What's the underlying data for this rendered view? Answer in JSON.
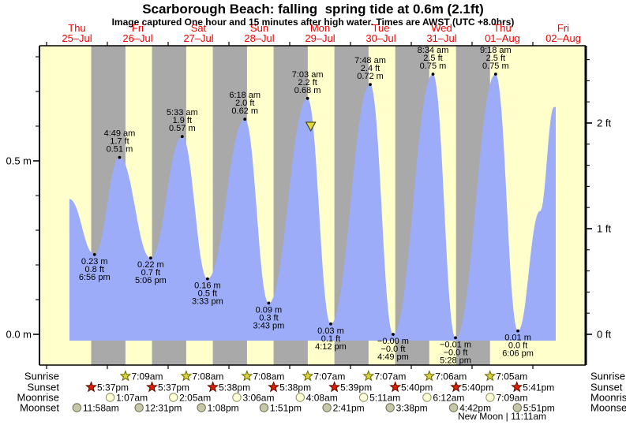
{
  "title": "Scarborough Beach: falling  spring tide at 0.6m (2.1ft)",
  "subtitle": "Image captured One hour and 15 minutes after high water. Times are AWST (UTC +8.0hrs)",
  "colors": {
    "day_band": "#ffffcc",
    "night_band": "#a9a9a9",
    "tide_fill": "#9dacf8",
    "date_text": "#f20000",
    "axis_line": "#000000",
    "annotation_text": "#000000",
    "sunrise_star_fill": "#d8d43a",
    "sunrise_star_stroke": "#6b6800",
    "sunset_star_fill": "#dd2005",
    "sunset_star_stroke": "#5a0d00",
    "moonrise_circle_fill": "#ffffd8",
    "moonrise_circle_stroke": "#8a8a60",
    "moonset_circle_fill": "#c6c6aa",
    "moonset_circle_stroke": "#6b6b50",
    "marker_fill": "#ddd83e",
    "marker_stroke": "#333300"
  },
  "x_axis": {
    "days": [
      {
        "weekday": "Thu",
        "date": "25–Jul"
      },
      {
        "weekday": "Fri",
        "date": "26–Jul"
      },
      {
        "weekday": "Sat",
        "date": "27–Jul"
      },
      {
        "weekday": "Sun",
        "date": "28–Jul"
      },
      {
        "weekday": "Mon",
        "date": "29–Jul"
      },
      {
        "weekday": "Tue",
        "date": "30–Jul"
      },
      {
        "weekday": "Wed",
        "date": "31–Jul"
      },
      {
        "weekday": "Thu",
        "date": "01–Aug"
      },
      {
        "weekday": "Fri",
        "date": "02–Aug"
      }
    ]
  },
  "y_axis": {
    "left_labels": [
      {
        "text": "0.5 m",
        "value_m": 0.5
      },
      {
        "text": "0.0 m",
        "value_m": 0.0
      }
    ],
    "right_labels": [
      {
        "text": "2 ft",
        "value_ft": 2
      },
      {
        "text": "1 ft",
        "value_ft": 1
      },
      {
        "text": "0 ft",
        "value_ft": 0
      }
    ]
  },
  "chart_data": {
    "type": "area",
    "series_name": "tide height",
    "units": [
      "m",
      "ft"
    ],
    "ylim_m": [
      -0.05,
      0.83
    ],
    "tide_events": [
      {
        "type": "low",
        "day": 0,
        "time": "6:56 pm",
        "height_m": 0.23,
        "labels": [
          "0.23 m",
          "0.8 ft",
          "6:56 pm"
        ]
      },
      {
        "type": "high",
        "day": 1,
        "time": "4:49 am",
        "height_m": 0.51,
        "labels": [
          "4:49 am",
          "1.7 ft",
          "0.51 m"
        ]
      },
      {
        "type": "low",
        "day": 1,
        "time": "5:06 pm",
        "height_m": 0.22,
        "labels": [
          "0.22 m",
          "0.7 ft",
          "5:06 pm"
        ]
      },
      {
        "type": "high",
        "day": 2,
        "time": "5:33 am",
        "height_m": 0.57,
        "labels": [
          "5:33 am",
          "1.9 ft",
          "0.57 m"
        ]
      },
      {
        "type": "low",
        "day": 2,
        "time": "3:33 pm",
        "height_m": 0.16,
        "labels": [
          "0.16 m",
          "0.5 ft",
          "3:33 pm"
        ]
      },
      {
        "type": "high",
        "day": 3,
        "time": "6:18 am",
        "height_m": 0.62,
        "labels": [
          "6:18 am",
          "2.0 ft",
          "0.62 m"
        ]
      },
      {
        "type": "low",
        "day": 3,
        "time": "3:43 pm",
        "height_m": 0.09,
        "labels": [
          "0.09 m",
          "0.3 ft",
          "3:43 pm"
        ]
      },
      {
        "type": "high",
        "day": 4,
        "time": "7:03 am",
        "height_m": 0.68,
        "labels": [
          "7:03 am",
          "2.2 ft",
          "0.68 m"
        ]
      },
      {
        "type": "low",
        "day": 4,
        "time": "4:12 pm",
        "height_m": 0.03,
        "labels": [
          "0.03 m",
          "0.1 ft",
          "4:12 pm"
        ]
      },
      {
        "type": "high",
        "day": 5,
        "time": "7:48 am",
        "height_m": 0.72,
        "labels": [
          "7:48 am",
          "2.4 ft",
          "0.72 m"
        ]
      },
      {
        "type": "low",
        "day": 5,
        "time": "4:49 pm",
        "height_m": 0.0,
        "labels": [
          "−0.00 m",
          "−0.0 ft",
          "4:49 pm"
        ]
      },
      {
        "type": "high",
        "day": 6,
        "time": "8:34 am",
        "height_m": 0.75,
        "labels": [
          "8:34 am",
          "2.5 ft",
          "0.75 m"
        ]
      },
      {
        "type": "low",
        "day": 6,
        "time": "5:28 pm",
        "height_m": -0.01,
        "labels": [
          "−0.01 m",
          "−0.0 ft",
          "5:28 pm"
        ]
      },
      {
        "type": "high",
        "day": 7,
        "time": "9:18 am",
        "height_m": 0.75,
        "labels": [
          "9:18 am",
          "2.5 ft",
          "0.75 m"
        ]
      },
      {
        "type": "low",
        "day": 7,
        "time": "6:06 pm",
        "height_m": 0.01,
        "labels": [
          "0.01 m",
          "0.0 ft",
          "6:06 pm"
        ]
      }
    ],
    "curve_start": {
      "day": 0,
      "time": "9:00 am",
      "height_m": 0.39
    },
    "curve_shoulder": {
      "day": 8,
      "time": "2:49 am",
      "height_m": 0.355
    },
    "curve_end": {
      "day": 8,
      "time": "8:24 am",
      "height_m": 0.655
    },
    "current_marker": {
      "day": 4,
      "time": "8:18 am",
      "height_m": 0.6
    }
  },
  "astro": {
    "rows": [
      {
        "key": "sunrise",
        "label": "Sunrise",
        "icon": "sunrise-star-icon",
        "entries": [
          {
            "day": 1,
            "time": "7:09am"
          },
          {
            "day": 2,
            "time": "7:08am"
          },
          {
            "day": 3,
            "time": "7:08am"
          },
          {
            "day": 4,
            "time": "7:07am"
          },
          {
            "day": 5,
            "time": "7:07am"
          },
          {
            "day": 6,
            "time": "7:06am"
          },
          {
            "day": 7,
            "time": "7:05am"
          }
        ]
      },
      {
        "key": "sunset",
        "label": "Sunset",
        "icon": "sunset-star-icon",
        "entries": [
          {
            "day": 0,
            "time": "5:37pm"
          },
          {
            "day": 1,
            "time": "5:37pm"
          },
          {
            "day": 2,
            "time": "5:38pm"
          },
          {
            "day": 3,
            "time": "5:38pm"
          },
          {
            "day": 4,
            "time": "5:39pm"
          },
          {
            "day": 5,
            "time": "5:40pm"
          },
          {
            "day": 6,
            "time": "5:40pm"
          },
          {
            "day": 7,
            "time": "5:41pm"
          }
        ]
      },
      {
        "key": "moonrise",
        "label": "Moonrise",
        "icon": "moonrise-circle-icon",
        "entries": [
          {
            "day": 1,
            "time": "1:07am"
          },
          {
            "day": 2,
            "time": "2:05am"
          },
          {
            "day": 3,
            "time": "3:06am"
          },
          {
            "day": 4,
            "time": "4:08am"
          },
          {
            "day": 5,
            "time": "5:11am"
          },
          {
            "day": 6,
            "time": "6:12am"
          },
          {
            "day": 7,
            "time": "7:09am"
          }
        ]
      },
      {
        "key": "moonset",
        "label": "Moonset",
        "icon": "moonset-circle-icon",
        "entries": [
          {
            "day": 0,
            "time": "11:58am"
          },
          {
            "day": 1,
            "time": "12:31pm"
          },
          {
            "day": 2,
            "time": "1:08pm"
          },
          {
            "day": 3,
            "time": "1:51pm"
          },
          {
            "day": 4,
            "time": "2:41pm"
          },
          {
            "day": 5,
            "time": "3:38pm"
          },
          {
            "day": 6,
            "time": "4:42pm"
          },
          {
            "day": 7,
            "time": "5:51pm"
          }
        ]
      }
    ],
    "footnote": "New Moon | 11:11am"
  }
}
